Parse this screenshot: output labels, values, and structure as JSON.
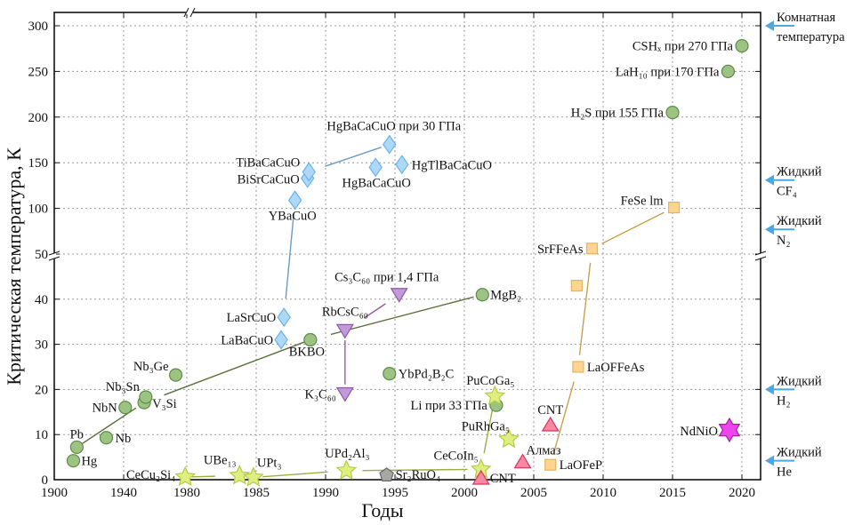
{
  "chart_data": {
    "type": "scatter",
    "title": "",
    "xlabel": "Годы",
    "ylabel": "Критическая температура, К",
    "x_ticks": [
      1900,
      1940,
      1980,
      1985,
      1990,
      1995,
      2000,
      2005,
      2010,
      2015,
      2020
    ],
    "x_scale": "piecewise (1900–1980 compressed)",
    "y_ticks_lower": [
      0,
      10,
      20,
      30,
      40
    ],
    "y_ticks_upper": [
      50,
      100,
      150,
      200,
      250,
      300
    ],
    "y_break": "axis broken at ~50 K",
    "grid": true,
    "series": [
      {
        "group": "conventional",
        "marker": "circle",
        "color": "#9dc383",
        "points": [
          {
            "label": "Hg",
            "x": 1911,
            "y": 4.2
          },
          {
            "label": "Pb",
            "x": 1913,
            "y": 7.2
          },
          {
            "label": "Nb",
            "x": 1930,
            "y": 9.3
          },
          {
            "label": "NbN",
            "x": 1941,
            "y": 16
          },
          {
            "label": "V₃Si",
            "x": 1953,
            "y": 17.1
          },
          {
            "label": "Nb₃Sn",
            "x": 1954,
            "y": 18.3
          },
          {
            "label": "Nb₃Ge",
            "x": 1973,
            "y": 23.2
          },
          {
            "label": "BKBO",
            "x": 1988.9,
            "y": 31
          },
          {
            "label": "YbPd₂B₂C",
            "x": 1994.6,
            "y": 23.5
          },
          {
            "label": "MgB₂",
            "x": 2001.3,
            "y": 41
          },
          {
            "label": "Li при 33 ГПа",
            "x": 2002.3,
            "y": 16.5
          },
          {
            "label": "H₂S при 155 ГПа",
            "x": 2015,
            "y": 205
          },
          {
            "label": "LaH₁₀ при 170 ГПа",
            "x": 2019,
            "y": 250
          },
          {
            "label": "CSHₓ при 270 ГПа",
            "x": 2020,
            "y": 278
          }
        ]
      },
      {
        "group": "cuprates",
        "marker": "diamond",
        "color": "#aed8f7",
        "points": [
          {
            "label": "LaBaCuO",
            "x": 1986.8,
            "y": 31
          },
          {
            "label": "LaSrCuO",
            "x": 1987,
            "y": 36
          },
          {
            "label": "YBaCuO",
            "x": 1987.8,
            "y": 109
          },
          {
            "label": "BiSrCaCuO",
            "x": 1988.7,
            "y": 133
          },
          {
            "label": "TiBaCaCuO",
            "x": 1988.8,
            "y": 140
          },
          {
            "label": "HgBaCaCuO",
            "x": 1993.6,
            "y": 145
          },
          {
            "label": "HgBaCaCuO при 30 ГПа",
            "x": 1994.6,
            "y": 170
          },
          {
            "label": "HgTlBaCaCuO",
            "x": 1995.5,
            "y": 148
          }
        ]
      },
      {
        "group": "fullerides",
        "marker": "triangle-down",
        "color": "#c39ad8",
        "points": [
          {
            "label": "K₃C₆₀",
            "x": 1991.4,
            "y": 19
          },
          {
            "label": "RbCsC₆₀",
            "x": 1991.4,
            "y": 33
          },
          {
            "label": "Cs₃C₆₀ при 1,4 ГПа",
            "x": 1995.3,
            "y": 41
          }
        ]
      },
      {
        "group": "heavy-fermion",
        "marker": "star",
        "color": "#e0ee80",
        "points": [
          {
            "label": "CeCu₂Si₄",
            "x": 1979,
            "y": 0.6
          },
          {
            "label": "UBe₁₃",
            "x": 1983.8,
            "y": 0.9
          },
          {
            "label": "UPt₃",
            "x": 1984.8,
            "y": 0.5
          },
          {
            "label": "UPd₂Al₃",
            "x": 1991.5,
            "y": 2
          },
          {
            "label": "CeCoIn₅",
            "x": 2001.2,
            "y": 2.3
          },
          {
            "label": "PuCoGa₅",
            "x": 2002.2,
            "y": 18.5
          },
          {
            "label": "PuRhGa₅",
            "x": 2003.2,
            "y": 9
          }
        ]
      },
      {
        "group": "ruthenate",
        "marker": "pentagon",
        "color": "#a8a8a0",
        "points": [
          {
            "label": "Sr₂RuO₄",
            "x": 1994.4,
            "y": 1
          }
        ]
      },
      {
        "group": "carbon",
        "marker": "triangle-up",
        "color": "#f48aa2",
        "points": [
          {
            "label": "CNT",
            "x": 2001.2,
            "y": 0.4
          },
          {
            "label": "Алмаз",
            "x": 2004.2,
            "y": 4
          },
          {
            "label": "CNT",
            "x": 2006.2,
            "y": 12.2
          }
        ]
      },
      {
        "group": "iron-based",
        "marker": "square",
        "color": "#fcd592",
        "points": [
          {
            "label": "LaOFeP",
            "x": 2006.2,
            "y": 3.3
          },
          {
            "label": "LaOFFeAs",
            "x": 2008.2,
            "y": 25
          },
          {
            "label": "",
            "x": 2008.1,
            "y": 43
          },
          {
            "label": "SrFFeAs",
            "x": 2009.2,
            "y": 56
          },
          {
            "label": "FeSe lm",
            "x": 2015.1,
            "y": 101
          }
        ]
      },
      {
        "group": "nickelate",
        "marker": "hexagram",
        "color": "#ee44ee",
        "points": [
          {
            "label": "NdNiO",
            "x": 2019.1,
            "y": 11
          }
        ]
      }
    ],
    "reference_levels": [
      {
        "line1": "Комнатная",
        "line2": "температура",
        "y": 300
      },
      {
        "line1": "Жидкий",
        "line2": "CF₄",
        "y": 131
      },
      {
        "line1": "Жидкий",
        "line2": "N₂",
        "y": 77
      },
      {
        "line1": "Жидкий",
        "line2": "H₂",
        "y": 20
      },
      {
        "line1": "Жидкий",
        "line2": "He",
        "y": 4.2
      }
    ],
    "reference_arrow_color": "#4aa8e6"
  }
}
